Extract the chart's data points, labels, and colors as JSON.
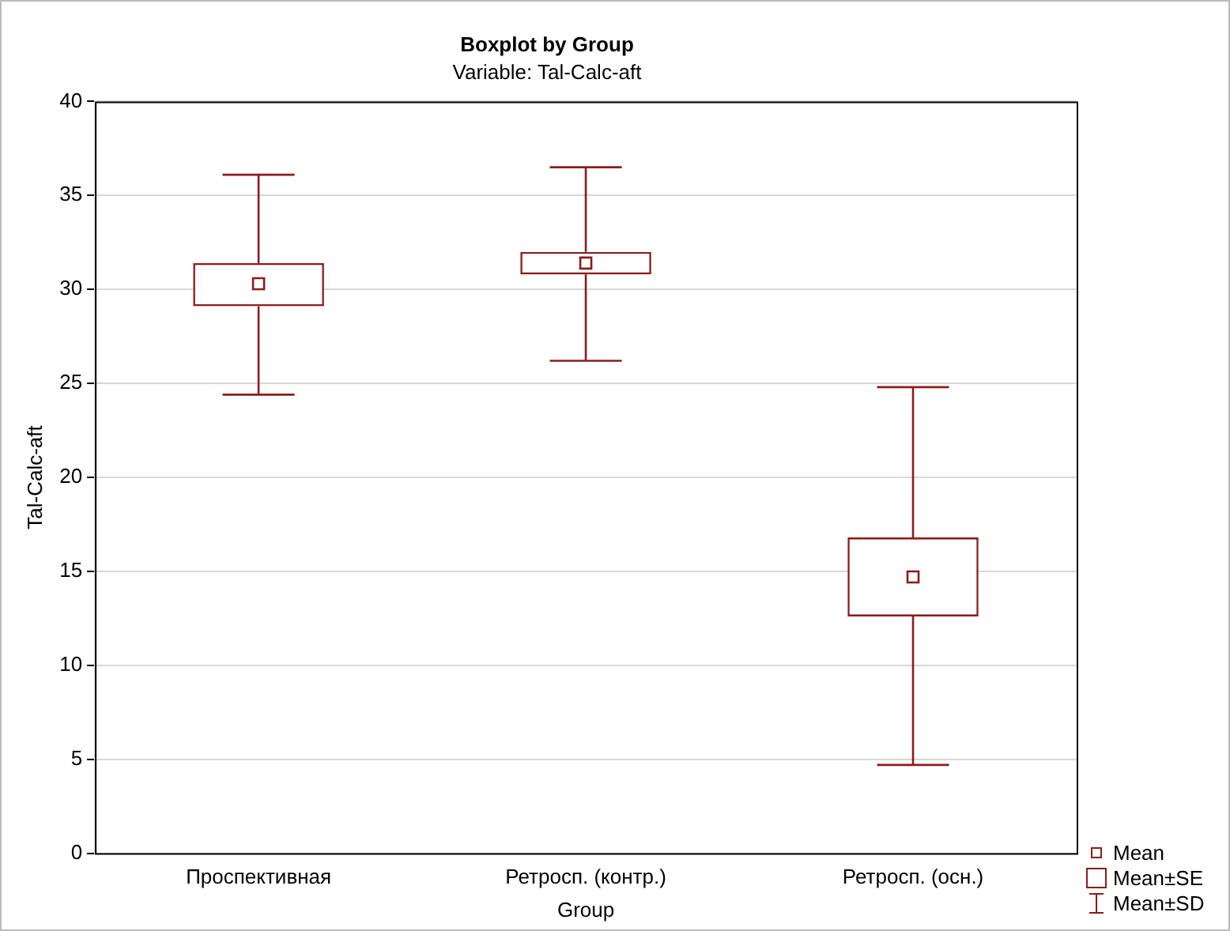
{
  "chart_data": {
    "type": "box",
    "title": "Boxplot by Group",
    "subtitle": "Variable: Tal-Calc-aft",
    "xlabel": "Group",
    "ylabel": "Tal-Calc-aft",
    "categories": [
      "Проспективная",
      "Ретросп. (контр.)",
      "Ретросп. (осн.)"
    ],
    "boxes": [
      {
        "low": 24.4,
        "q1": 29.1,
        "median": 30.3,
        "q3": 31.4,
        "high": 36.1
      },
      {
        "low": 26.2,
        "q1": 30.8,
        "median": 31.4,
        "q3": 32.0,
        "high": 36.5
      },
      {
        "low": 4.7,
        "q1": 12.6,
        "median": 14.7,
        "q3": 16.8,
        "high": 24.8
      }
    ],
    "color": "#8c1c1c",
    "ylim": [
      0,
      40
    ],
    "yticks": [
      0,
      5,
      10,
      15,
      20,
      25,
      30,
      35,
      40
    ],
    "grid": "y",
    "annotations": [
      "Mean",
      "Mean±SE",
      "Mean±SD"
    ]
  }
}
